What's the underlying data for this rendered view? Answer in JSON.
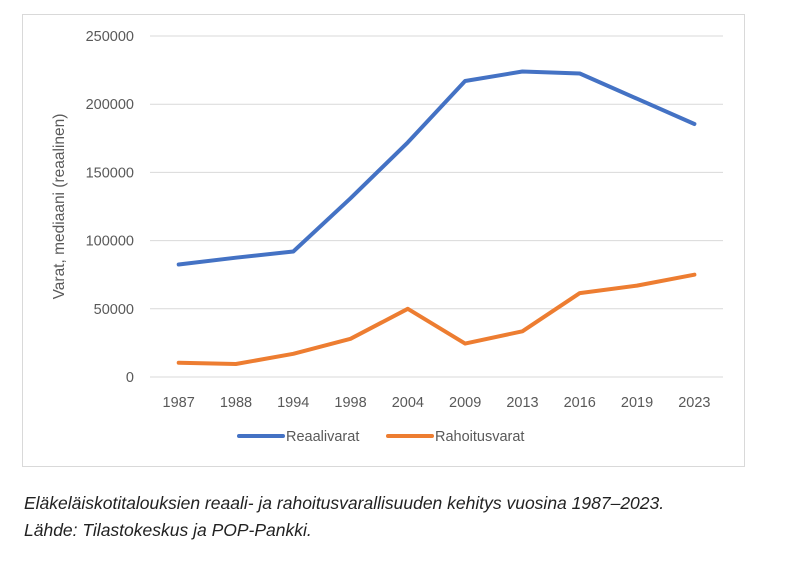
{
  "chart_data": {
    "type": "line",
    "categories": [
      "1987",
      "1988",
      "1994",
      "1998",
      "2004",
      "2009",
      "2013",
      "2016",
      "2019",
      "2023"
    ],
    "series": [
      {
        "name": "Reaalivarat",
        "color": "#4472c4",
        "values": [
          82500,
          87500,
          92000,
          131000,
          172000,
          217000,
          224000,
          222500,
          204000,
          185500
        ]
      },
      {
        "name": "Rahoitusvarat",
        "color": "#ed7d31",
        "values": [
          10500,
          9500,
          17000,
          28000,
          50000,
          24500,
          33500,
          61500,
          67000,
          75000
        ]
      }
    ],
    "title": "",
    "xlabel": "",
    "ylabel": "Varat, mediaani (reaalinen)",
    "ylim": [
      0,
      250000
    ],
    "yticks": [
      "0",
      "50000",
      "100000",
      "150000",
      "200000",
      "250000"
    ],
    "grid": true,
    "legend_position": "bottom"
  },
  "caption": {
    "line1": "Eläkeläiskotitalouksien reaali- ja rahoitusvarallisuuden kehitys vuosina 1987–2023.",
    "line2": "Lähde: Tilastokeskus ja POP-Pankki."
  }
}
